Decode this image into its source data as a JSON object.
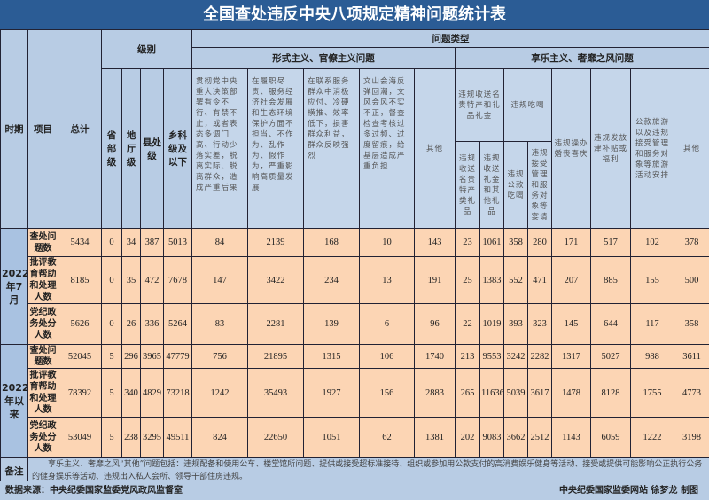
{
  "title": "全国查处违反中央八项规定精神问题统计表",
  "header": {
    "period": "时期",
    "item": "项目",
    "total": "总计",
    "level": "级别",
    "problem_type": "问题类型",
    "levels": [
      "省部级",
      "地厅级",
      "县处级",
      "乡科级及以下"
    ],
    "formalism": "形式主义、官僚主义问题",
    "formalism_cols": [
      "贯彻党中央重大决策部署有令不行、有禁不止，或者表态多调门高、行动少落实差，脱离实际、脱离群众，造成严重后果",
      "在履职尽责、服务经济社会发展和生态环境保护方面不担当、不作为、乱作为、假作为，严重影响高质量发展",
      "在联系服务群众中消极应付、冷硬横推、效率低下，损害群众利益，群众反映强烈",
      "文山会海反弹回潮，文风会风不实不正，督查检查考核过多过频、过度留痕，给基层造成严重负担",
      "其他"
    ],
    "hedonism": "享乐主义、奢靡之风问题",
    "gifts": "违规收送名贵特产和礼品礼金",
    "gifts_sub": [
      "违规收送名贵特产类礼品",
      "违规收送礼金和其他礼品"
    ],
    "dining": "违规吃喝",
    "dining_sub": [
      "违规公款吃喝",
      "违规接受管理和服务对象等宴请"
    ],
    "hedonism_cols": [
      "违规操办婚丧喜庆",
      "违规发放津补贴或福利",
      "公款旅游以及违规接受管理和服务对象等旅游活动安排",
      "其他"
    ]
  },
  "groups": [
    {
      "period": "2022年7月",
      "rows": [
        {
          "item": "查处问题数",
          "values": [
            "5434",
            "0",
            "34",
            "387",
            "5013",
            "84",
            "2139",
            "168",
            "10",
            "143",
            "23",
            "1061",
            "358",
            "280",
            "171",
            "517",
            "102",
            "378"
          ]
        },
        {
          "item": "批评教育帮助和处理人数",
          "values": [
            "8185",
            "0",
            "35",
            "472",
            "7678",
            "147",
            "3422",
            "234",
            "13",
            "191",
            "25",
            "1383",
            "552",
            "471",
            "207",
            "885",
            "155",
            "500"
          ]
        },
        {
          "item": "党纪政务处分人数",
          "values": [
            "5626",
            "0",
            "26",
            "336",
            "5264",
            "83",
            "2281",
            "139",
            "6",
            "96",
            "22",
            "1019",
            "393",
            "323",
            "145",
            "644",
            "117",
            "358"
          ]
        }
      ]
    },
    {
      "period": "2022年以来",
      "rows": [
        {
          "item": "查处问题数",
          "values": [
            "52045",
            "5",
            "296",
            "3965",
            "47779",
            "756",
            "21895",
            "1315",
            "106",
            "1740",
            "213",
            "9553",
            "3242",
            "2282",
            "1317",
            "5027",
            "988",
            "3611"
          ]
        },
        {
          "item": "批评教育帮助和处理人数",
          "values": [
            "78392",
            "5",
            "340",
            "4829",
            "73218",
            "1242",
            "35493",
            "1927",
            "156",
            "2883",
            "265",
            "11636",
            "5039",
            "3617",
            "1478",
            "8128",
            "1755",
            "4773"
          ]
        },
        {
          "item": "党纪政务处分人数",
          "values": [
            "53049",
            "5",
            "238",
            "3295",
            "49511",
            "824",
            "22650",
            "1051",
            "62",
            "1381",
            "202",
            "9083",
            "3662",
            "2512",
            "1143",
            "6059",
            "1222",
            "3198"
          ]
        }
      ]
    }
  ],
  "note_label": "备注",
  "note": "享乐主义、奢靡之风“其他”问题包括：违规配备和使用公车、楼堂馆所问题、提供或接受超标准接待、组织或参加用公款支付的高消费娱乐健身等活动、接受或提供可能影响公正执行公务的健身娱乐等活动、违规出入私人会所、领导干部住房违规。",
  "footer": {
    "source": "数据来源：中央纪委国家监委党风政风监督室",
    "credit": "中央纪委国家监委网站 徐梦龙 制图"
  }
}
